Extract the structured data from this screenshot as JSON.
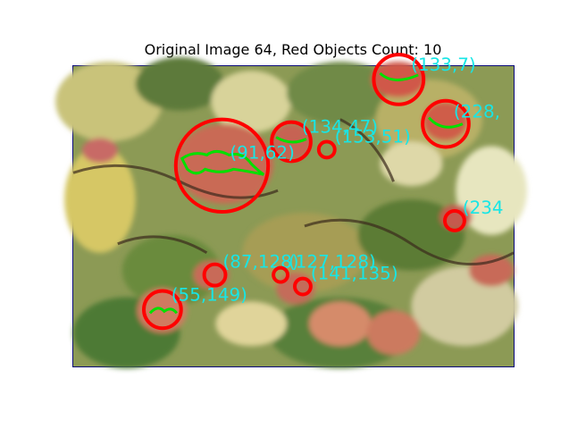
{
  "title": "Original Image 64, Red Objects Count: 10",
  "colors": {
    "circle": "#ff0000",
    "contour": "#00e000",
    "label": "#17e6e6",
    "frame": "#0a0a7a"
  },
  "detections": [
    {
      "label": "(133,7)"
    },
    {
      "label": "(228,"
    },
    {
      "label": "(134,47)"
    },
    {
      "label": "(153,51)"
    },
    {
      "label": "(91,62)"
    },
    {
      "label": "(234"
    },
    {
      "label": "(87,128)"
    },
    {
      "label": "(127,128)"
    },
    {
      "label": "(141,135)"
    },
    {
      "label": "(55,149)"
    }
  ]
}
